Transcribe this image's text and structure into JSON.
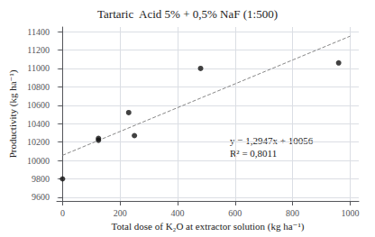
{
  "chart_data": {
    "type": "scatter",
    "title": "Tartaric  Acid 5% + 0,5% NaF (1:500)",
    "xlabel": "Total dose of K₂O at extractor solution (kg ha⁻¹)",
    "ylabel": "Productivity (kg ha⁻¹)",
    "series": [
      {
        "type": "scatter",
        "marker": "circle",
        "color": "#111111",
        "x": [
          0,
          125,
          125,
          230,
          250,
          480,
          960
        ],
        "values": [
          9800,
          10220,
          10240,
          10520,
          10270,
          11000,
          11060
        ]
      },
      {
        "type": "line",
        "line_style": "dashed",
        "color": "#888888",
        "x": [
          0,
          1000
        ],
        "values": [
          10056,
          11350.7
        ]
      }
    ],
    "annotations": [
      "y = 1,2947x + 10056",
      "R² = 0,8011"
    ],
    "xlim": [
      -20,
      1030
    ],
    "ylim": [
      9560,
      11450
    ],
    "xticks": [
      0,
      200,
      400,
      600,
      800,
      1000
    ],
    "yticks": [
      9600,
      9800,
      10000,
      10200,
      10400,
      10600,
      10800,
      11000,
      11200,
      11400
    ],
    "grid": true
  }
}
